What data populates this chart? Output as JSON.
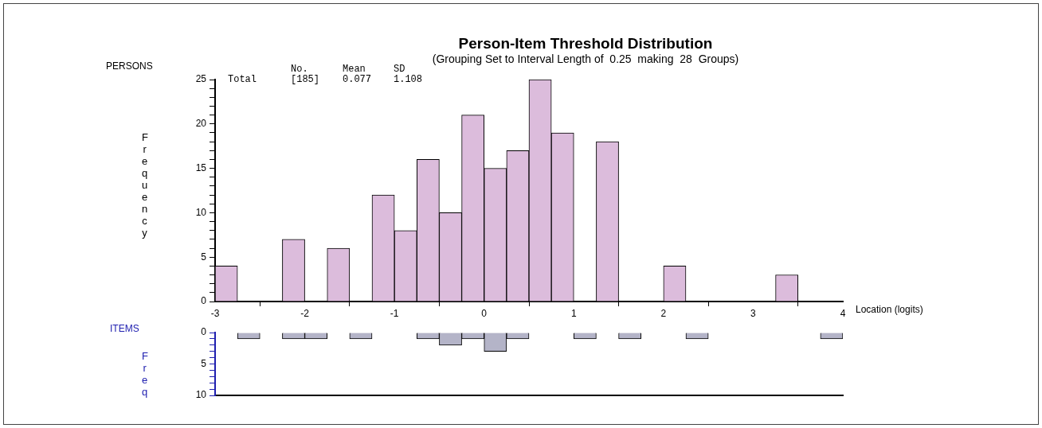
{
  "chart_data": [
    {
      "type": "histogram",
      "title": "Person-Item Threshold Distribution",
      "subtitle": "(Grouping Set to Interval Length of  0.25  making  28  Groups)",
      "xlabel": "Location (logits)",
      "ylabel": "Frequency",
      "annotations": [
        "PERSONS",
        "No.",
        "Mean",
        "SD",
        "Total",
        "[185]",
        "0.077",
        "1.108"
      ],
      "bins": [
        -3,
        -2.75,
        -2.5,
        -2.25,
        -2,
        -1.75,
        -1.5,
        -1.25,
        -1,
        -0.75,
        -0.5,
        -0.25,
        0,
        0.25,
        0.5,
        0.75,
        1,
        1.25,
        1.5,
        1.75,
        2,
        2.25,
        2.5,
        2.75,
        3,
        3.25,
        3.5,
        3.75,
        4
      ],
      "values": [
        4,
        0,
        0,
        7,
        0,
        6,
        0,
        12,
        8,
        16,
        10,
        21,
        15,
        17,
        25,
        19,
        0,
        18,
        0,
        0,
        4,
        0,
        0,
        0,
        0,
        3,
        0,
        0
      ],
      "color": "#dcbcdc",
      "xlim": [
        -3,
        4
      ],
      "xticks": [
        -3,
        -2,
        -1,
        0,
        1,
        2,
        3,
        4
      ],
      "ylim": [
        0,
        25
      ],
      "yticks": [
        0,
        {
          "value": 1,
          "label": null
        },
        {
          "value": 2,
          "label": null
        },
        {
          "value": 3,
          "label": null
        },
        {
          "value": 4,
          "label": null
        },
        5,
        {
          "value": 6,
          "label": null
        },
        {
          "value": 7,
          "label": null
        },
        {
          "value": 8,
          "label": null
        },
        {
          "value": 9,
          "label": null
        },
        10,
        {
          "value": 11,
          "label": null
        },
        {
          "value": 12,
          "label": null
        },
        {
          "value": 13,
          "label": null
        },
        {
          "value": 14,
          "label": null
        },
        15,
        {
          "value": 16,
          "label": null
        },
        {
          "value": 17,
          "label": null
        },
        {
          "value": 18,
          "label": null
        },
        {
          "value": 19,
          "label": null
        },
        20,
        {
          "value": 21,
          "label": null
        },
        {
          "value": 22,
          "label": null
        },
        {
          "value": 23,
          "label": null
        },
        {
          "value": 24,
          "label": null
        },
        25
      ]
    },
    {
      "type": "histogram",
      "ylabel": "Freq",
      "annotations": [
        "ITEMS"
      ],
      "bins": [
        -3,
        -2.75,
        -2.5,
        -2.25,
        -2,
        -1.75,
        -1.5,
        -1.25,
        -1,
        -0.75,
        -0.5,
        -0.25,
        0,
        0.25,
        0.5,
        0.75,
        1,
        1.25,
        1.5,
        1.75,
        2,
        2.25,
        2.5,
        2.75,
        3,
        3.25,
        3.5,
        3.75,
        4
      ],
      "values": [
        0,
        1,
        0,
        1,
        1,
        0,
        1,
        0,
        0,
        1,
        2,
        1,
        3,
        1,
        0,
        0,
        1,
        0,
        1,
        0,
        0,
        1,
        0,
        0,
        0,
        0,
        0,
        1
      ],
      "color": "#b4b4c8",
      "xlim": [
        -3,
        4
      ],
      "ylim": [
        10,
        0
      ],
      "yticks": [
        0,
        {
          "value": 1,
          "label": null
        },
        {
          "value": 2,
          "label": null
        },
        {
          "value": 3,
          "label": null
        },
        {
          "value": 4,
          "label": null
        },
        5,
        {
          "value": 6,
          "label": null
        },
        {
          "value": 7,
          "label": null
        },
        {
          "value": 8,
          "label": null
        },
        {
          "value": 9,
          "label": null
        },
        10
      ],
      "tick_labels": "y"
    }
  ]
}
